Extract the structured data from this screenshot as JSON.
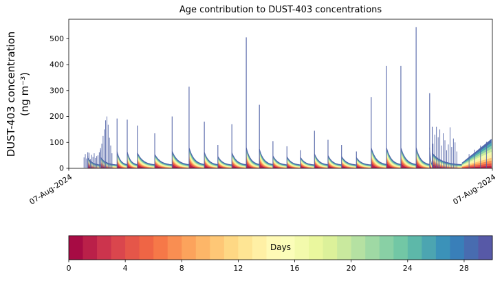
{
  "chart_data": {
    "type": "area",
    "title": "Age contribution to DUST-403 concentrations",
    "ylabel": "DUST-403 concentration",
    "ylabel_units": "(ng m⁻³)",
    "ylim": [
      0,
      575
    ],
    "yticks": [
      0,
      100,
      200,
      300,
      400,
      500
    ],
    "x_axis": {
      "start_label": "07-Aug-2024",
      "end_label": "07-Aug-2024"
    },
    "grid": false,
    "series_color": "#5465a8",
    "age_layers": 10,
    "decay_floor": 12,
    "events": [
      [
        0.045,
        62
      ],
      [
        0.075,
        70
      ],
      [
        0.114,
        192
      ],
      [
        0.138,
        188
      ],
      [
        0.162,
        165
      ],
      [
        0.203,
        135
      ],
      [
        0.244,
        200
      ],
      [
        0.284,
        315
      ],
      [
        0.32,
        180
      ],
      [
        0.352,
        90
      ],
      [
        0.385,
        170
      ],
      [
        0.419,
        505
      ],
      [
        0.45,
        245
      ],
      [
        0.482,
        105
      ],
      [
        0.515,
        85
      ],
      [
        0.547,
        70
      ],
      [
        0.58,
        145
      ],
      [
        0.612,
        110
      ],
      [
        0.644,
        90
      ],
      [
        0.679,
        65
      ],
      [
        0.714,
        275
      ],
      [
        0.75,
        395
      ],
      [
        0.784,
        395
      ],
      [
        0.82,
        545
      ],
      [
        0.852,
        290
      ],
      [
        0.858,
        160
      ]
    ],
    "noise_spikes": [
      [
        0.036,
        42
      ],
      [
        0.039,
        55
      ],
      [
        0.042,
        38
      ],
      [
        0.045,
        48
      ],
      [
        0.048,
        60
      ],
      [
        0.051,
        35
      ],
      [
        0.054,
        52
      ],
      [
        0.057,
        44
      ],
      [
        0.06,
        58
      ],
      [
        0.063,
        40
      ],
      [
        0.066,
        47
      ],
      [
        0.069,
        50
      ],
      [
        0.072,
        62
      ],
      [
        0.075,
        78
      ],
      [
        0.078,
        95
      ],
      [
        0.081,
        125
      ],
      [
        0.084,
        150
      ],
      [
        0.087,
        185
      ],
      [
        0.09,
        200
      ],
      [
        0.093,
        168
      ],
      [
        0.096,
        118
      ],
      [
        0.099,
        88
      ],
      [
        0.102,
        58
      ],
      [
        0.86,
        95
      ],
      [
        0.864,
        130
      ],
      [
        0.868,
        160
      ],
      [
        0.872,
        120
      ],
      [
        0.876,
        150
      ],
      [
        0.88,
        88
      ],
      [
        0.884,
        135
      ],
      [
        0.888,
        108
      ],
      [
        0.892,
        70
      ],
      [
        0.896,
        92
      ],
      [
        0.9,
        158
      ],
      [
        0.904,
        82
      ],
      [
        0.908,
        115
      ],
      [
        0.912,
        100
      ],
      [
        0.916,
        65
      ],
      [
        0.945,
        55
      ],
      [
        0.958,
        72
      ],
      [
        0.972,
        88
      ],
      [
        0.986,
        102
      ]
    ],
    "end_ramp": {
      "x0": 0.928,
      "x1": 0.998,
      "h0": 20,
      "h1": 112
    },
    "colorbar": {
      "label": "Days",
      "ticks": [
        0,
        4,
        8,
        12,
        16,
        20,
        24,
        28
      ],
      "range": [
        0,
        30
      ],
      "segments": 30,
      "colormap_stops": [
        "#9e0142",
        "#d53e4f",
        "#f46d43",
        "#fdae61",
        "#fee08b",
        "#ffffbf",
        "#e6f598",
        "#abdda4",
        "#66c2a5",
        "#3288bd",
        "#5e4fa2"
      ]
    }
  }
}
